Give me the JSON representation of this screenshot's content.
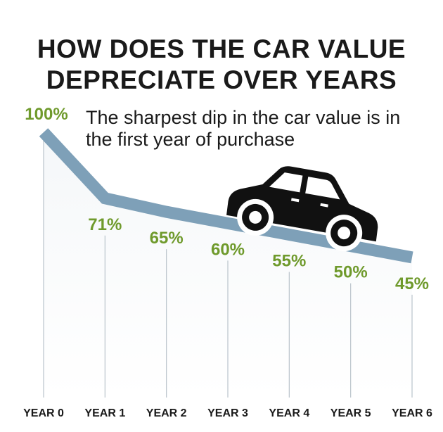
{
  "chart_data": {
    "type": "line",
    "title": "HOW DOES THE CAR VALUE DEPRECIATE OVER YEARS",
    "subtitle": "The sharpest dip in the car value is in the first year of purchase",
    "categories": [
      "YEAR 0",
      "YEAR 1",
      "YEAR 2",
      "YEAR 3",
      "YEAR 4",
      "YEAR 5",
      "YEAR 6"
    ],
    "values": [
      100,
      71,
      65,
      60,
      55,
      50,
      45
    ],
    "value_labels": [
      "100%",
      "71%",
      "65%",
      "60%",
      "55%",
      "50%",
      "45%"
    ],
    "unit": "%",
    "ylim": [
      40,
      100
    ],
    "grid": false,
    "legend": "none"
  },
  "colors": {
    "line": "#7ea0b8",
    "label": "#6f9a2c",
    "text": "#1a1a1a",
    "car": "#111111"
  },
  "icons": {
    "car": "car-icon"
  }
}
